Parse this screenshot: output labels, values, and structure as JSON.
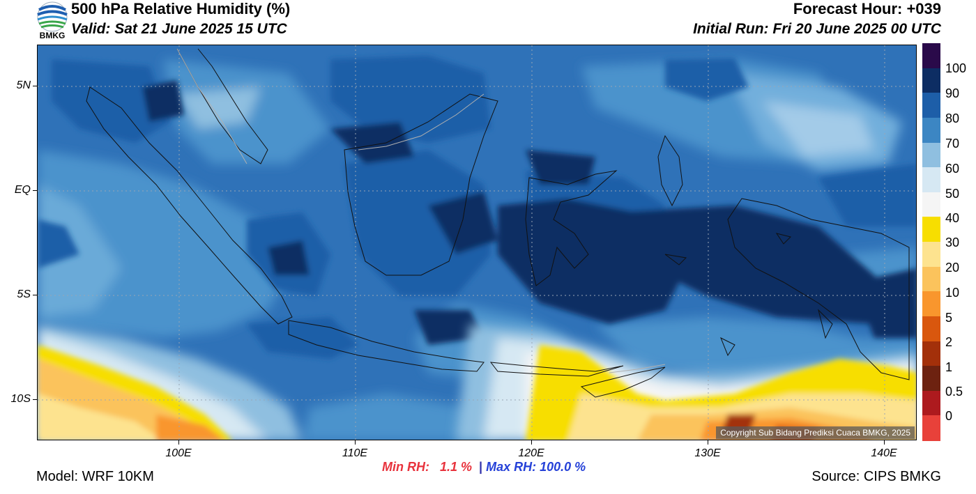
{
  "header": {
    "title": "500 hPa Relative Humidity (%)",
    "valid": "Valid: Sat 21 June 2025 15 UTC",
    "forecast_hour": "Forecast Hour: +039",
    "initial_run": "Initial Run: Fri 20 June 2025 00 UTC",
    "logo_text": "BMKG"
  },
  "axes": {
    "lat_labels": [
      "5N",
      "EQ",
      "5S",
      "10S"
    ],
    "lon_labels": [
      "100E",
      "110E",
      "120E",
      "130E",
      "140E"
    ],
    "lat_range": [
      -12,
      7
    ],
    "lon_range": [
      92,
      142
    ]
  },
  "colorbar": {
    "labels": [
      "100",
      "90",
      "80",
      "70",
      "60",
      "50",
      "40",
      "30",
      "20",
      "10",
      "5",
      "2",
      "1",
      "0.5",
      "0"
    ],
    "colors": [
      "#2a0a4a",
      "#0d2d63",
      "#1d5ea8",
      "#3c86c3",
      "#8fbfe0",
      "#d6e8f3",
      "#f5f5f5",
      "#f7de00",
      "#fde38f",
      "#fbc35c",
      "#f9962d",
      "#d9570e",
      "#a3300a",
      "#6d2210",
      "#ad1a1e",
      "#e8413a"
    ]
  },
  "stats": {
    "min_rh": "Min RH:   1.1 %",
    "separator": "|",
    "max_rh": "Max RH: 100.0 %"
  },
  "footer": {
    "model": "Model: WRF 10KM",
    "source": "Source: CIPS BMKG",
    "copyright": "Copyright Sub Bidang Prediksi Cuaca BMKG, 2025"
  }
}
